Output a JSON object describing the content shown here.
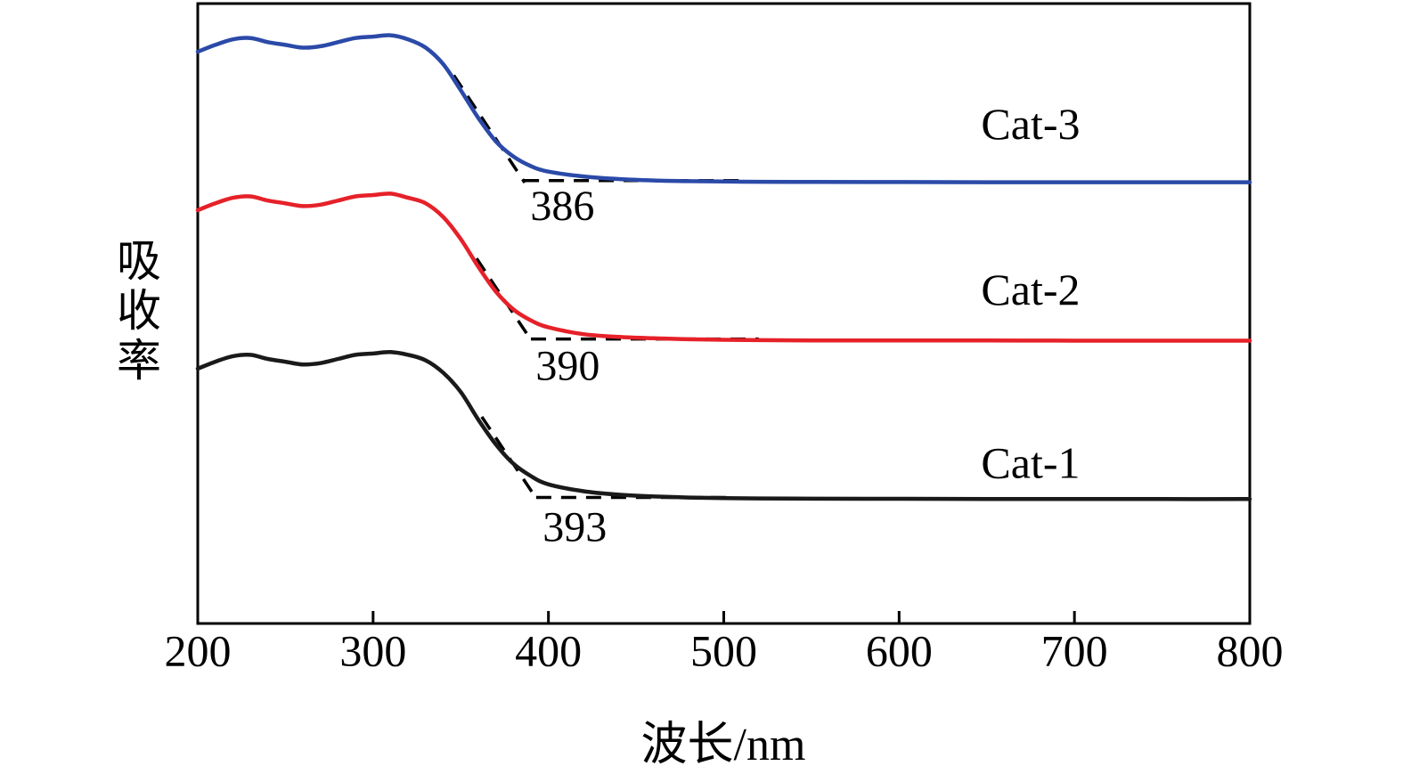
{
  "figure": {
    "background": "#ffffff"
  },
  "chart_data": {
    "type": "line",
    "title": "",
    "xlabel": "波长/nm",
    "ylabel": "吸收率",
    "xlim": [
      200,
      800
    ],
    "ylim": [
      -0.9,
      3.6
    ],
    "x_ticks": [
      200,
      300,
      400,
      500,
      600,
      700,
      800
    ],
    "grid": false,
    "legend_position": "none",
    "axis_color": "#000000",
    "dash_color": "#000000",
    "x": [
      200,
      210,
      220,
      230,
      240,
      250,
      260,
      270,
      280,
      290,
      300,
      310,
      320,
      330,
      340,
      350,
      360,
      370,
      380,
      390,
      400,
      420,
      440,
      460,
      480,
      500,
      520,
      550,
      600,
      650,
      700,
      750,
      800
    ],
    "series": [
      {
        "name": "Cat-1",
        "color": "#1a1a1a",
        "offset": 0.0,
        "edge_nm": 393,
        "values": [
          0.95,
          1.0,
          1.04,
          1.05,
          1.02,
          1.0,
          0.98,
          0.99,
          1.02,
          1.05,
          1.06,
          1.07,
          1.05,
          1.01,
          0.92,
          0.78,
          0.58,
          0.4,
          0.26,
          0.17,
          0.11,
          0.06,
          0.035,
          0.022,
          0.014,
          0.01,
          0.008,
          0.006,
          0.005,
          0.004,
          0.004,
          0.003,
          0.003
        ],
        "tangent": {
          "x1_nm": 362,
          "y1": 0.6,
          "x2_nm": 393.5,
          "y2": 0.0
        },
        "baseline_dash": {
          "x1_nm": 393,
          "x2_nm": 502,
          "y": 0.015
        }
      },
      {
        "name": "Cat-2",
        "color": "#e62129",
        "offset": 1.15,
        "edge_nm": 390,
        "values": [
          0.95,
          1.0,
          1.04,
          1.05,
          1.02,
          1.0,
          0.98,
          0.99,
          1.02,
          1.05,
          1.06,
          1.07,
          1.04,
          1.0,
          0.9,
          0.74,
          0.54,
          0.36,
          0.23,
          0.15,
          0.1,
          0.05,
          0.03,
          0.02,
          0.013,
          0.009,
          0.007,
          0.005,
          0.004,
          0.004,
          0.003,
          0.003,
          0.003
        ],
        "tangent": {
          "x1_nm": 359,
          "y1": 0.6,
          "x2_nm": 390.5,
          "y2": 0.0
        },
        "baseline_dash": {
          "x1_nm": 390,
          "x2_nm": 520,
          "y": 0.015
        }
      },
      {
        "name": "Cat-3",
        "color": "#2b4aa8",
        "offset": 2.3,
        "edge_nm": 386,
        "values": [
          0.95,
          1.0,
          1.04,
          1.05,
          1.02,
          1.0,
          0.98,
          0.99,
          1.02,
          1.05,
          1.06,
          1.07,
          1.04,
          0.98,
          0.86,
          0.67,
          0.47,
          0.3,
          0.19,
          0.12,
          0.08,
          0.045,
          0.026,
          0.016,
          0.011,
          0.008,
          0.006,
          0.005,
          0.004,
          0.003,
          0.003,
          0.003,
          0.003
        ],
        "tangent": {
          "x1_nm": 346,
          "y1": 0.78,
          "x2_nm": 386.5,
          "y2": 0.0
        },
        "baseline_dash": {
          "x1_nm": 386,
          "x2_nm": 512,
          "y": 0.015
        }
      }
    ],
    "annotations": {
      "series_labels": [
        {
          "text": "Cat-1",
          "x_nm": 675,
          "y": 0.23
        },
        {
          "text": "Cat-2",
          "x_nm": 675,
          "y": 1.49
        },
        {
          "text": "Cat-3",
          "x_nm": 675,
          "y": 2.69
        }
      ],
      "edge_labels": [
        {
          "text": "393",
          "x_nm": 415,
          "y": -0.23
        },
        {
          "text": "390",
          "x_nm": 411,
          "y": 0.94
        },
        {
          "text": "386",
          "x_nm": 408,
          "y": 2.1
        }
      ]
    }
  }
}
